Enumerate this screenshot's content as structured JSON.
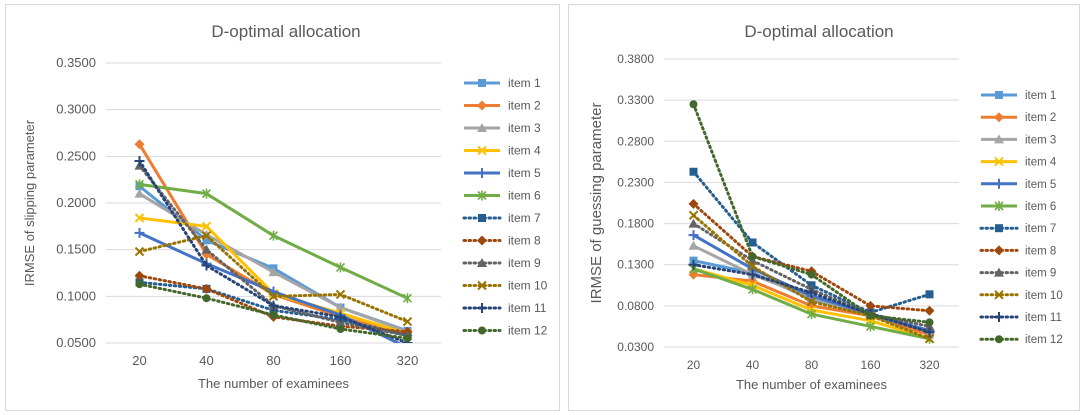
{
  "chart_data": [
    {
      "type": "line",
      "title": "D-optimal allocation",
      "xlabel": "The number of examinees",
      "ylabel": "IRMSE of slipping parameter",
      "categories": [
        "20",
        "40",
        "80",
        "160",
        "320"
      ],
      "ylim": [
        0.05,
        0.35
      ],
      "yticks": [
        "0.0500",
        "0.1000",
        "0.1500",
        "0.2000",
        "0.2500",
        "0.3000",
        "0.3500"
      ],
      "grid": "horizontal",
      "legend_position": "right",
      "series": [
        {
          "name": "item 1",
          "color": "#5B9BD5",
          "style": "solid",
          "marker": "square",
          "values": [
            0.218,
            0.16,
            0.13,
            0.088,
            0.063
          ]
        },
        {
          "name": "item 2",
          "color": "#ED7D31",
          "style": "solid",
          "marker": "diamond",
          "values": [
            0.263,
            0.145,
            0.102,
            0.078,
            0.058
          ]
        },
        {
          "name": "item 3",
          "color": "#A5A5A5",
          "style": "solid",
          "marker": "triangle",
          "values": [
            0.21,
            0.166,
            0.126,
            0.088,
            0.062
          ]
        },
        {
          "name": "item 4",
          "color": "#FFC000",
          "style": "solid",
          "marker": "x",
          "values": [
            0.184,
            0.175,
            0.103,
            0.082,
            0.06
          ]
        },
        {
          "name": "item 5",
          "color": "#4472C4",
          "style": "solid",
          "marker": "plus",
          "values": [
            0.168,
            0.135,
            0.105,
            0.08,
            0.045
          ]
        },
        {
          "name": "item 6",
          "color": "#70AD47",
          "style": "solid",
          "marker": "star",
          "values": [
            0.22,
            0.21,
            0.165,
            0.131,
            0.098
          ]
        },
        {
          "name": "item 7",
          "color": "#255E91",
          "style": "dotted",
          "marker": "square",
          "values": [
            0.115,
            0.108,
            0.085,
            0.075,
            0.058
          ]
        },
        {
          "name": "item 8",
          "color": "#9E480E",
          "style": "dotted",
          "marker": "diamond",
          "values": [
            0.122,
            0.108,
            0.078,
            0.068,
            0.062
          ]
        },
        {
          "name": "item 9",
          "color": "#636363",
          "style": "dotted",
          "marker": "triangle",
          "values": [
            0.24,
            0.15,
            0.09,
            0.072,
            0.058
          ]
        },
        {
          "name": "item 10",
          "color": "#997300",
          "style": "dotted",
          "marker": "x",
          "values": [
            0.148,
            0.165,
            0.1,
            0.102,
            0.073
          ]
        },
        {
          "name": "item 11",
          "color": "#264478",
          "style": "dotted",
          "marker": "plus",
          "values": [
            0.245,
            0.133,
            0.09,
            0.078,
            0.05
          ]
        },
        {
          "name": "item 12",
          "color": "#43682B",
          "style": "dotted",
          "marker": "circle",
          "values": [
            0.113,
            0.098,
            0.08,
            0.065,
            0.055
          ]
        }
      ]
    },
    {
      "type": "line",
      "title": "D-optimal allocation",
      "xlabel": "The number of examinees",
      "ylabel": "IRMSE of guessing parameter",
      "categories": [
        "20",
        "40",
        "80",
        "160",
        "320"
      ],
      "ylim": [
        0.03,
        0.38
      ],
      "yticks": [
        "0.0300",
        "0.0800",
        "0.1300",
        "0.1800",
        "0.2300",
        "0.2800",
        "0.3300",
        "0.3800"
      ],
      "grid": "horizontal",
      "legend_position": "right",
      "series": [
        {
          "name": "item 1",
          "color": "#5B9BD5",
          "style": "solid",
          "marker": "square",
          "values": [
            0.135,
            0.12,
            0.088,
            0.07,
            0.045
          ]
        },
        {
          "name": "item 2",
          "color": "#ED7D31",
          "style": "solid",
          "marker": "diamond",
          "values": [
            0.118,
            0.11,
            0.08,
            0.068,
            0.045
          ]
        },
        {
          "name": "item 3",
          "color": "#A5A5A5",
          "style": "solid",
          "marker": "triangle",
          "values": [
            0.153,
            0.118,
            0.09,
            0.068,
            0.05
          ]
        },
        {
          "name": "item 4",
          "color": "#FFC000",
          "style": "solid",
          "marker": "x",
          "values": [
            0.125,
            0.105,
            0.075,
            0.062,
            0.04
          ]
        },
        {
          "name": "item 5",
          "color": "#4472C4",
          "style": "solid",
          "marker": "plus",
          "values": [
            0.166,
            0.125,
            0.092,
            0.07,
            0.05
          ]
        },
        {
          "name": "item 6",
          "color": "#70AD47",
          "style": "solid",
          "marker": "star",
          "values": [
            0.125,
            0.1,
            0.07,
            0.055,
            0.04
          ]
        },
        {
          "name": "item 7",
          "color": "#255E91",
          "style": "dotted",
          "marker": "square",
          "values": [
            0.243,
            0.157,
            0.105,
            0.072,
            0.094
          ]
        },
        {
          "name": "item 8",
          "color": "#9E480E",
          "style": "dotted",
          "marker": "diamond",
          "values": [
            0.204,
            0.14,
            0.122,
            0.08,
            0.074
          ]
        },
        {
          "name": "item 9",
          "color": "#636363",
          "style": "dotted",
          "marker": "triangle",
          "values": [
            0.18,
            0.135,
            0.1,
            0.07,
            0.055
          ]
        },
        {
          "name": "item 10",
          "color": "#997300",
          "style": "dotted",
          "marker": "x",
          "values": [
            0.19,
            0.128,
            0.085,
            0.068,
            0.04
          ]
        },
        {
          "name": "item 11",
          "color": "#264478",
          "style": "dotted",
          "marker": "plus",
          "values": [
            0.13,
            0.118,
            0.096,
            0.07,
            0.048
          ]
        },
        {
          "name": "item 12",
          "color": "#43682B",
          "style": "dotted",
          "marker": "circle",
          "values": [
            0.325,
            0.14,
            0.118,
            0.068,
            0.06
          ]
        }
      ]
    }
  ]
}
